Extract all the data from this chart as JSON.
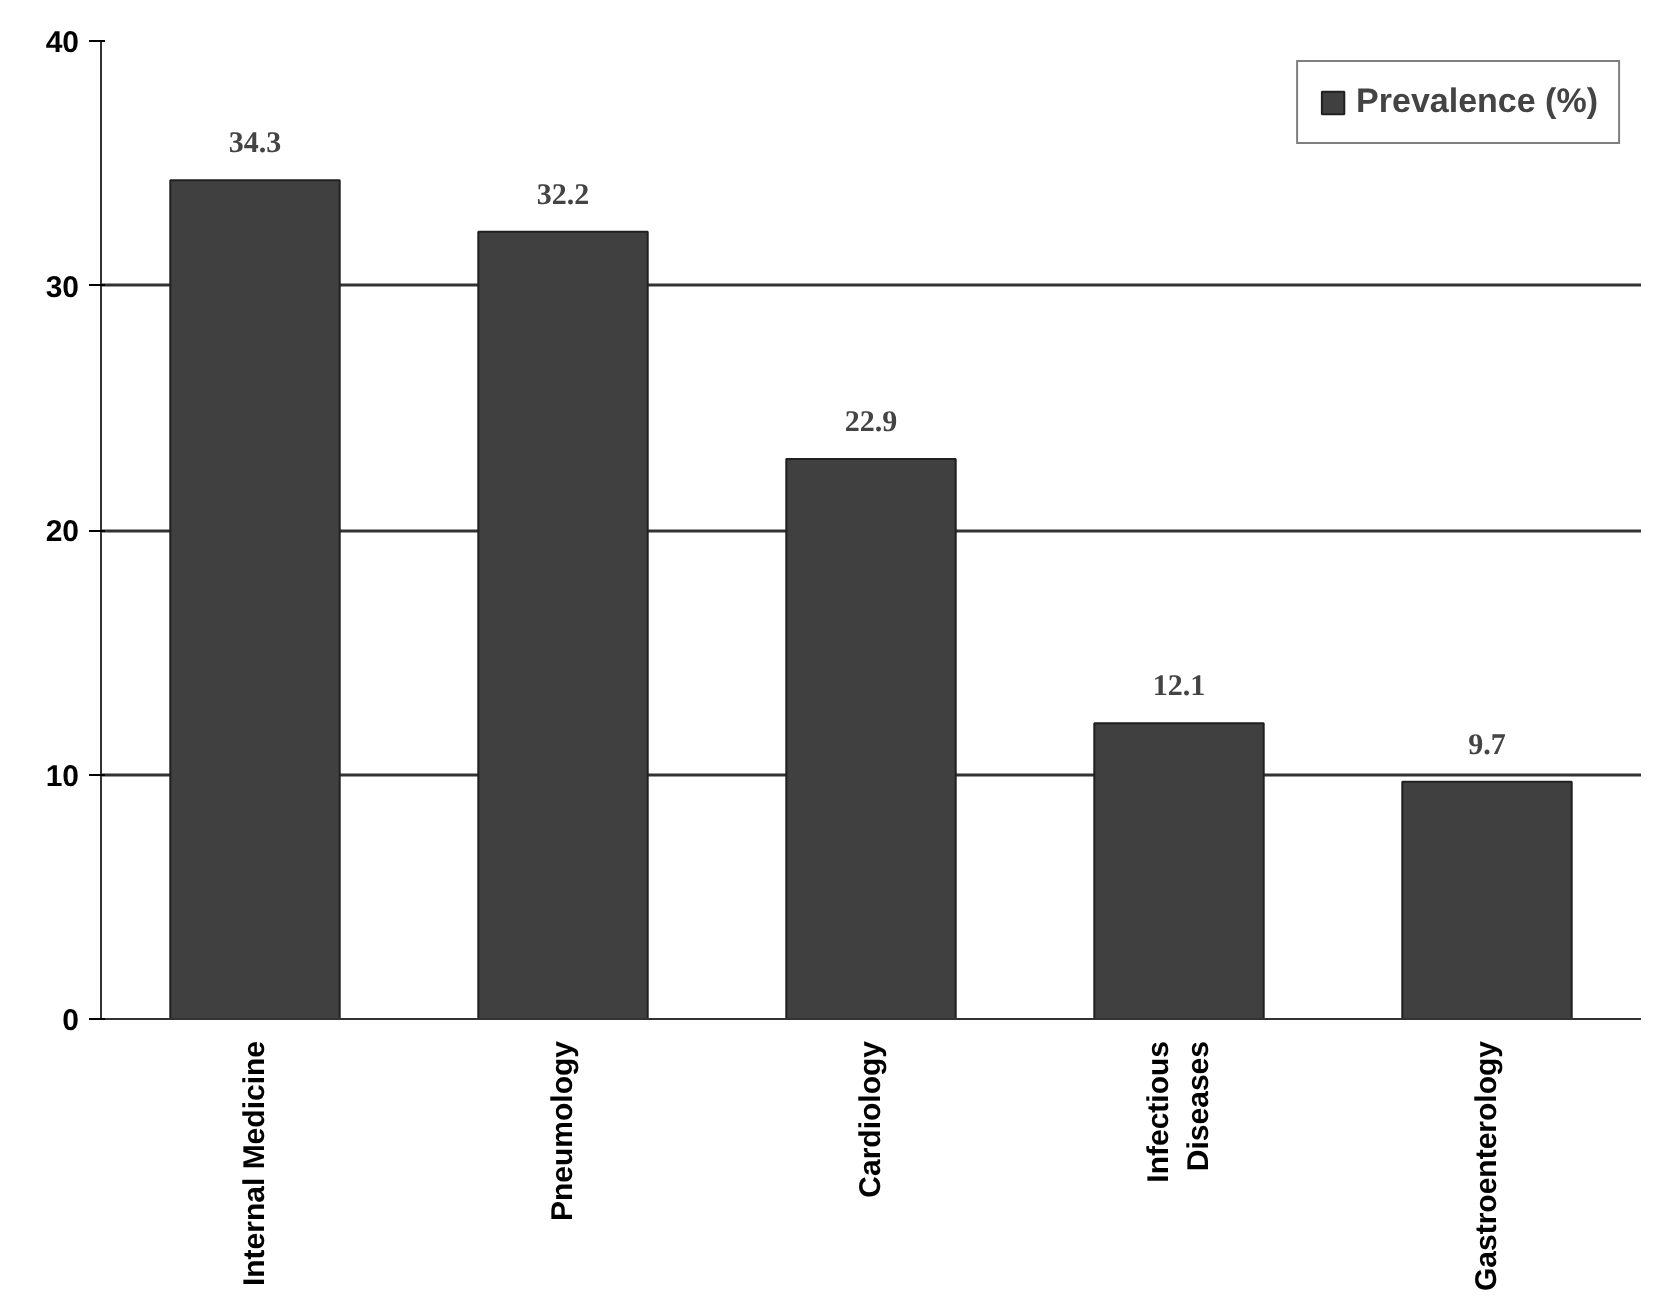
{
  "chart_data": {
    "type": "bar",
    "categories": [
      "Internal Medicine",
      "Pneumology",
      "Cardiology",
      "Infectious\nDiseases",
      "Gastroenterology"
    ],
    "series": [
      {
        "name": "Prevalence (%)",
        "color": "#404040",
        "values": [
          34.3,
          32.2,
          22.9,
          12.1,
          9.7
        ]
      }
    ],
    "ylim": [
      0,
      40
    ],
    "yticks": [
      0,
      10,
      20,
      30,
      40
    ],
    "grid": "y",
    "legend": "top right",
    "data_labels": true
  }
}
